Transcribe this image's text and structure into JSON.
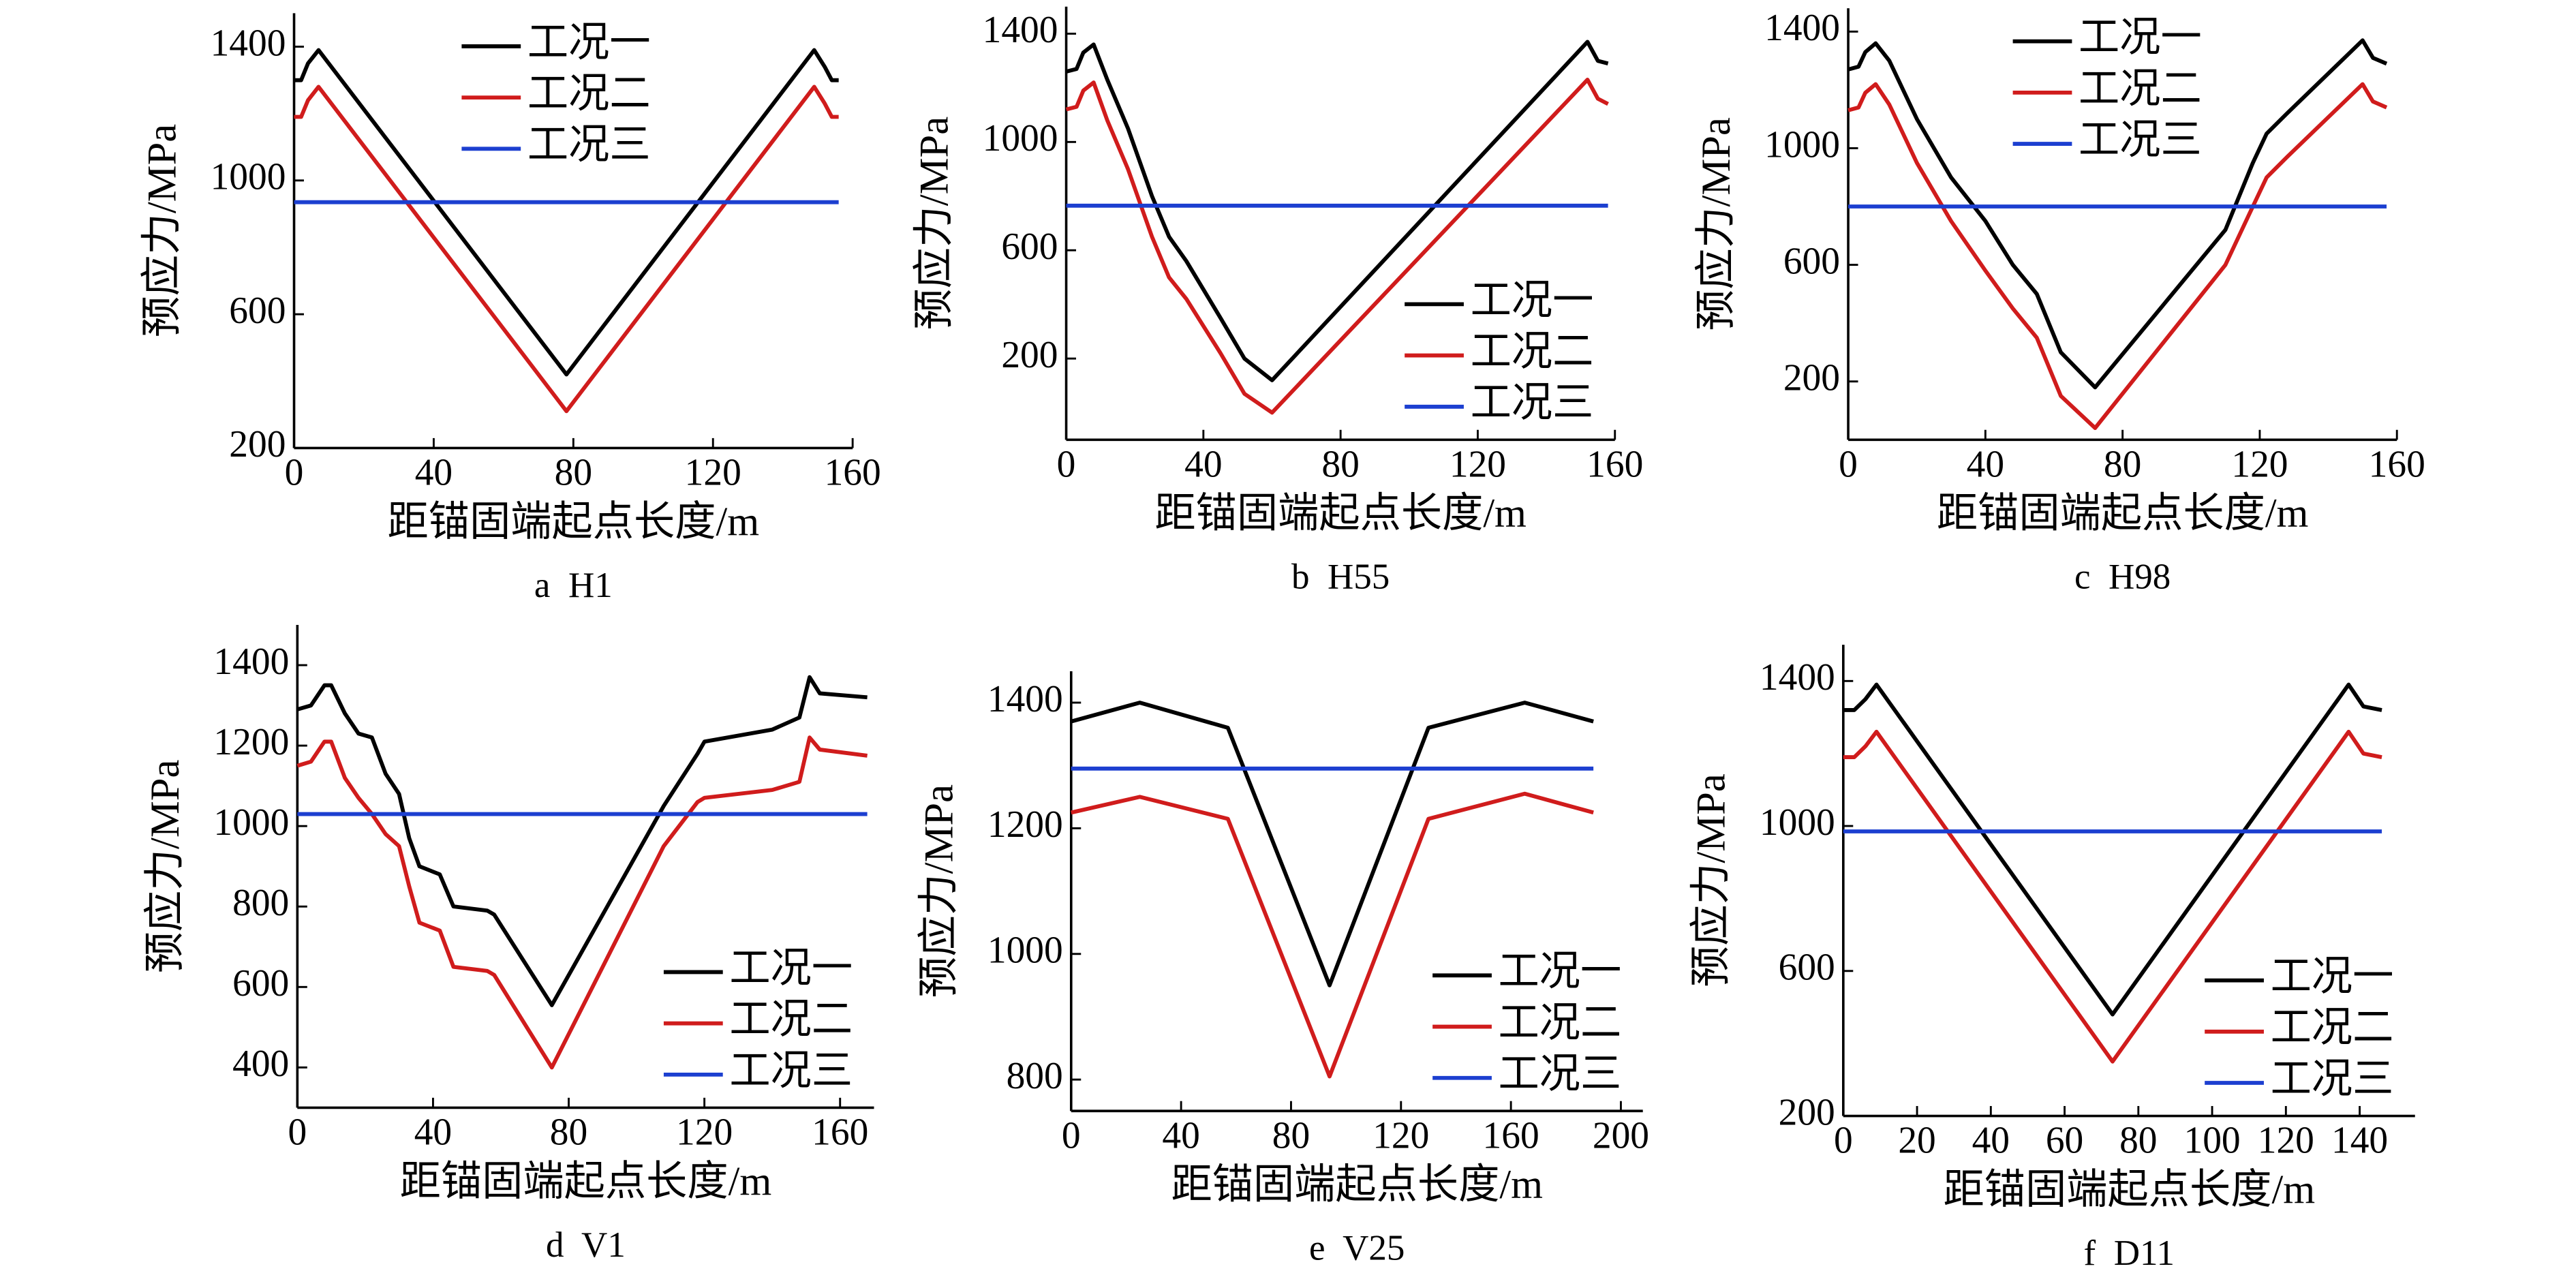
{
  "chart_data": [
    {
      "type": "line",
      "caption": "a  H1",
      "xlabel": "距锚固端起点长度/m",
      "ylabel": "预应力/MPa",
      "xlim": [
        0,
        160
      ],
      "ylim": [
        200,
        1500
      ],
      "xticks": [
        0,
        40,
        80,
        120,
        160
      ],
      "yticks": [
        200,
        600,
        1000,
        1400
      ],
      "legend": "upper center",
      "x": [
        0,
        2,
        4,
        7,
        78,
        149,
        152,
        154,
        156
      ],
      "series": [
        {
          "name": "工况一",
          "color": "#000000",
          "values": [
            1300,
            1300,
            1350,
            1390,
            420,
            1390,
            1340,
            1300,
            1300
          ]
        },
        {
          "name": "工况二",
          "color": "#d01c1c",
          "values": [
            1190,
            1190,
            1240,
            1280,
            310,
            1280,
            1230,
            1190,
            1190
          ]
        },
        {
          "name": "工况三",
          "color": "#1c3fd0",
          "values": [
            935,
            935,
            935,
            935,
            935,
            935,
            935,
            935,
            935
          ]
        }
      ]
    },
    {
      "type": "line",
      "caption": "b  H55",
      "xlabel": "距锚固端起点长度/m",
      "ylabel": "预应力/MPa",
      "xlim": [
        0,
        160
      ],
      "ylim": [
        -100,
        1500
      ],
      "xticks": [
        0,
        40,
        80,
        120,
        160
      ],
      "yticks": [
        200,
        600,
        1000,
        1400
      ],
      "legend": "lower right",
      "x": [
        0,
        3,
        5,
        8,
        12,
        18,
        25,
        30,
        35,
        45,
        52,
        60,
        152,
        155,
        158
      ],
      "series": [
        {
          "name": "工况一",
          "color": "#000000",
          "values": [
            1260,
            1270,
            1330,
            1360,
            1230,
            1050,
            800,
            650,
            560,
            350,
            200,
            120,
            1370,
            1300,
            1290
          ]
        },
        {
          "name": "工况二",
          "color": "#d01c1c",
          "values": [
            1120,
            1130,
            1190,
            1220,
            1080,
            900,
            650,
            500,
            420,
            220,
            70,
            0,
            1230,
            1160,
            1140
          ]
        },
        {
          "name": "工况三",
          "color": "#1c3fd0",
          "values": [
            765,
            765,
            765,
            765,
            765,
            765,
            765,
            765,
            765,
            765,
            765,
            765,
            765,
            765,
            765
          ]
        }
      ]
    },
    {
      "type": "line",
      "caption": "c  H98",
      "xlabel": "距锚固端起点长度/m",
      "ylabel": "预应力/MPa",
      "xlim": [
        0,
        160
      ],
      "ylim": [
        0,
        1480
      ],
      "xticks": [
        0,
        40,
        80,
        120,
        160
      ],
      "yticks": [
        200,
        600,
        1000,
        1400
      ],
      "legend": "upper center",
      "x": [
        0,
        3,
        5,
        8,
        12,
        20,
        30,
        40,
        48,
        55,
        62,
        72,
        110,
        118,
        122,
        128,
        150,
        153,
        157
      ],
      "series": [
        {
          "name": "工况一",
          "color": "#000000",
          "values": [
            1270,
            1280,
            1330,
            1360,
            1300,
            1100,
            900,
            750,
            600,
            500,
            300,
            180,
            720,
            950,
            1050,
            1120,
            1370,
            1310,
            1290
          ]
        },
        {
          "name": "工况二",
          "color": "#d01c1c",
          "values": [
            1130,
            1140,
            1190,
            1220,
            1150,
            950,
            750,
            580,
            450,
            350,
            150,
            40,
            600,
            800,
            900,
            970,
            1220,
            1160,
            1140
          ]
        },
        {
          "name": "工况三",
          "color": "#1c3fd0",
          "values": [
            800,
            800,
            800,
            800,
            800,
            800,
            800,
            800,
            800,
            800,
            800,
            800,
            800,
            800,
            800,
            800,
            800,
            800,
            800
          ]
        }
      ]
    },
    {
      "type": "line",
      "caption": "d  V1",
      "xlabel": "距锚固端起点长度/m",
      "ylabel": "预应力/MPa",
      "xlim": [
        0,
        170
      ],
      "ylim": [
        300,
        1500
      ],
      "xticks": [
        0,
        40,
        80,
        120,
        160
      ],
      "yticks": [
        400,
        600,
        800,
        1000,
        1200,
        1400
      ],
      "legend": "lower right",
      "x": [
        0,
        4,
        8,
        10,
        14,
        18,
        22,
        26,
        30,
        33,
        36,
        42,
        46,
        56,
        58,
        75,
        108,
        118,
        120,
        140,
        148,
        151,
        154,
        168
      ],
      "series": [
        {
          "name": "工况一",
          "color": "#000000",
          "values": [
            1290,
            1300,
            1350,
            1350,
            1280,
            1230,
            1220,
            1130,
            1080,
            970,
            900,
            880,
            800,
            790,
            780,
            555,
            1050,
            1180,
            1210,
            1240,
            1270,
            1370,
            1330,
            1320
          ]
        },
        {
          "name": "工况二",
          "color": "#d01c1c",
          "values": [
            1150,
            1160,
            1210,
            1210,
            1120,
            1070,
            1030,
            980,
            950,
            850,
            760,
            740,
            650,
            640,
            630,
            400,
            950,
            1060,
            1070,
            1090,
            1110,
            1220,
            1190,
            1175
          ]
        },
        {
          "name": "工况三",
          "color": "#1c3fd0",
          "values": [
            1030,
            1030,
            1030,
            1030,
            1030,
            1030,
            1030,
            1030,
            1030,
            1030,
            1030,
            1030,
            1030,
            1030,
            1030,
            1030,
            1030,
            1030,
            1030,
            1030,
            1030,
            1030,
            1030,
            1030
          ]
        }
      ]
    },
    {
      "type": "line",
      "caption": "e  V25",
      "xlabel": "距锚固端起点长度/m",
      "ylabel": "预应力/MPa",
      "xlim": [
        0,
        208
      ],
      "ylim": [
        750,
        1450
      ],
      "xticks": [
        0,
        40,
        80,
        120,
        160,
        200
      ],
      "yticks": [
        800,
        1000,
        1200,
        1400
      ],
      "legend": "lower right",
      "x": [
        0,
        25,
        57,
        94,
        130,
        165,
        190
      ],
      "series": [
        {
          "name": "工况一",
          "color": "#000000",
          "values": [
            1370,
            1400,
            1360,
            950,
            1360,
            1400,
            1370
          ]
        },
        {
          "name": "工况二",
          "color": "#d01c1c",
          "values": [
            1225,
            1250,
            1215,
            805,
            1215,
            1255,
            1225
          ]
        },
        {
          "name": "工况三",
          "color": "#1c3fd0",
          "values": [
            1295,
            1295,
            1295,
            1295,
            1295,
            1295,
            1295
          ]
        }
      ]
    },
    {
      "type": "line",
      "caption": "f  D11",
      "xlabel": "距锚固端起点长度/m",
      "ylabel": "预应力/MPa",
      "xlim": [
        0,
        155
      ],
      "ylim": [
        200,
        1500
      ],
      "xticks": [
        0,
        20,
        40,
        60,
        80,
        100,
        120,
        140
      ],
      "yticks": [
        200,
        600,
        1000,
        1400
      ],
      "legend": "lower right",
      "x": [
        0,
        3,
        6,
        9,
        73,
        137,
        141,
        146
      ],
      "series": [
        {
          "name": "工况一",
          "color": "#000000",
          "values": [
            1320,
            1320,
            1350,
            1390,
            480,
            1390,
            1330,
            1320
          ]
        },
        {
          "name": "工况二",
          "color": "#d01c1c",
          "values": [
            1190,
            1190,
            1220,
            1260,
            350,
            1260,
            1200,
            1190
          ]
        },
        {
          "name": "工况三",
          "color": "#1c3fd0",
          "values": [
            985,
            985,
            985,
            985,
            985,
            985,
            985,
            985
          ]
        }
      ]
    }
  ]
}
